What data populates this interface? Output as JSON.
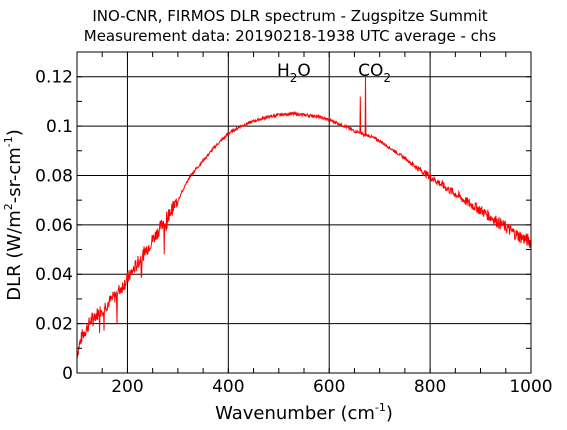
{
  "chart_data": {
    "type": "line",
    "title": "INO-CNR, FIRMOS DLR spectrum - Zugspitze Summit",
    "subtitle": "Measurement data: 20190218-1938 UTC average - chs",
    "xlabel": "Wavenumber (cm",
    "xlabel_sup": "-1",
    "xlabel_end": ")",
    "ylabel": "DLR (W/m",
    "ylabel_sup1": "2",
    "ylabel_mid": "-sr-cm",
    "ylabel_sup2": "-1",
    "ylabel_end": ")",
    "xlim": [
      100,
      1000
    ],
    "ylim": [
      0,
      0.13
    ],
    "x_ticks": [
      200,
      400,
      600,
      800,
      1000
    ],
    "x_tick_labels": [
      "200",
      "400",
      "600",
      "800",
      "1000"
    ],
    "y_ticks": [
      0,
      0.02,
      0.04,
      0.06,
      0.08,
      0.1,
      0.12
    ],
    "y_tick_labels": [
      "0",
      "0.02",
      "0.04",
      "0.06",
      "0.08",
      "0.1",
      "0.12"
    ],
    "grid": true,
    "annotations": [
      {
        "label": "H",
        "sub": "2",
        "after": "O",
        "x": 530
      },
      {
        "label": "CO",
        "sub": "2",
        "after": "",
        "x": 690
      }
    ],
    "series": [
      {
        "color": "#ff0000",
        "x": [
          100,
          110,
          130,
          150,
          175,
          200,
          225,
          250,
          275,
          300,
          325,
          350,
          375,
          400,
          425,
          450,
          475,
          500,
          525,
          550,
          575,
          600,
          625,
          650,
          660,
          670,
          680,
          700,
          725,
          750,
          775,
          800,
          825,
          850,
          875,
          900,
          925,
          950,
          975,
          1000
        ],
        "y": [
          0.008,
          0.015,
          0.022,
          0.026,
          0.031,
          0.038,
          0.046,
          0.054,
          0.062,
          0.07,
          0.08,
          0.086,
          0.092,
          0.097,
          0.1,
          0.102,
          0.1035,
          0.1045,
          0.105,
          0.1045,
          0.104,
          0.1025,
          0.1005,
          0.098,
          0.0975,
          0.0965,
          0.096,
          0.094,
          0.0905,
          0.087,
          0.083,
          0.0795,
          0.076,
          0.0725,
          0.069,
          0.066,
          0.0625,
          0.059,
          0.0555,
          0.053
        ]
      }
    ]
  }
}
